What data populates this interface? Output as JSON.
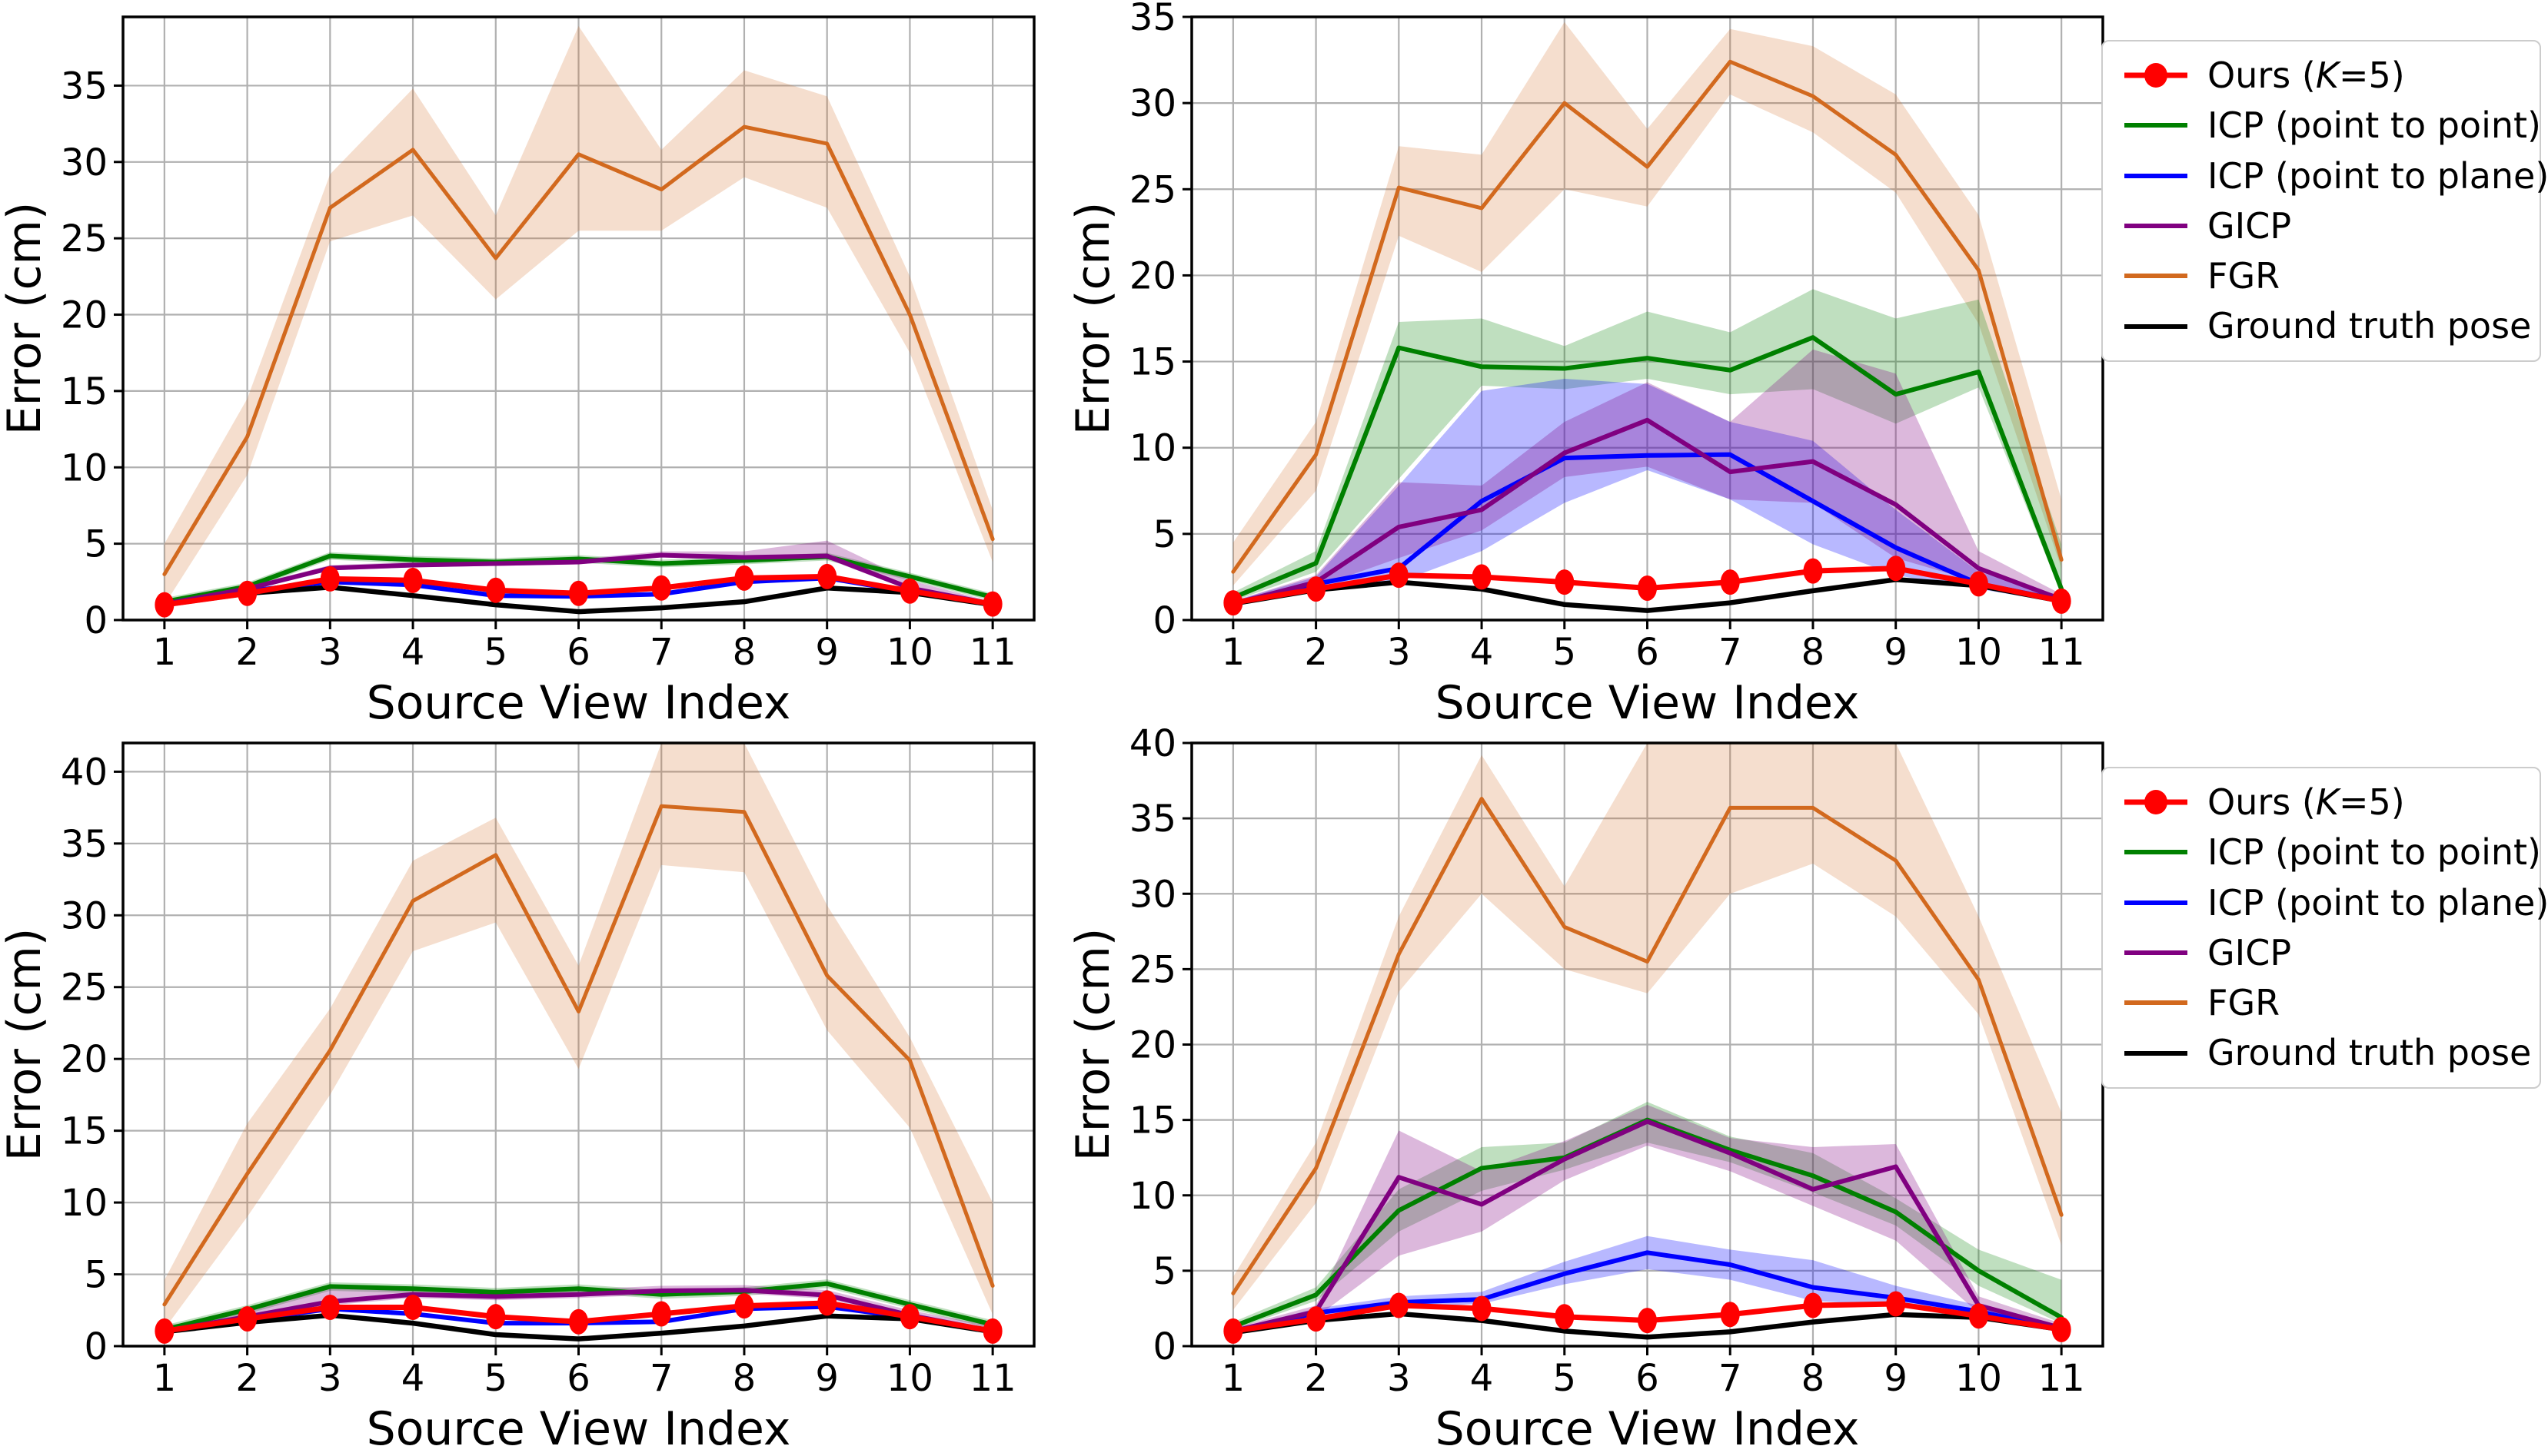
{
  "figure": {
    "background": "#ffffff"
  },
  "axis": {
    "xlabel": "Source View Index",
    "ylabel": "Error (cm)"
  },
  "colors": {
    "ours": "#ff0000",
    "icp_p2p": "#008000",
    "icp_p2l": "#0000ff",
    "gicp": "#800080",
    "fgr": "#d2691e",
    "gt": "#000000",
    "grid": "#b0b0b0",
    "spine": "#000000"
  },
  "legend": {
    "items": [
      {
        "key": "ours",
        "label": "Ours (K=5)",
        "parts": [
          "Ours (",
          "K",
          "=5)"
        ],
        "italic_index": 1,
        "color": "#ff0000",
        "marker": true
      },
      {
        "key": "icp_p2p",
        "label": "ICP (point to point)",
        "parts": [
          "ICP (point to point)"
        ],
        "color": "#008000"
      },
      {
        "key": "icp_p2l",
        "label": "ICP (point to plane)",
        "parts": [
          "ICP (point to plane)"
        ],
        "color": "#0000ff"
      },
      {
        "key": "gicp",
        "label": "GICP",
        "parts": [
          "GICP"
        ],
        "color": "#800080"
      },
      {
        "key": "fgr",
        "label": "FGR",
        "parts": [
          "FGR"
        ],
        "color": "#d2691e"
      },
      {
        "key": "gt",
        "label": "Ground truth pose",
        "parts": [
          "Ground truth pose"
        ],
        "color": "#000000"
      }
    ]
  },
  "chart_data": [
    {
      "id": "top-left",
      "type": "line",
      "xlabel": "Source View Index",
      "ylabel": "Error (cm)",
      "x": [
        1,
        2,
        3,
        4,
        5,
        6,
        7,
        8,
        9,
        10,
        11
      ],
      "xlim": [
        0.5,
        11.5
      ],
      "ylim": [
        0,
        39.5
      ],
      "yticks": [
        0,
        5,
        10,
        15,
        20,
        25,
        30,
        35
      ],
      "grid": true,
      "legend": false,
      "series": [
        {
          "key": "fgr",
          "name": "FGR",
          "color": "#d2691e",
          "width": 5,
          "values": [
            3.0,
            12.0,
            27.0,
            30.8,
            23.7,
            30.5,
            28.2,
            32.3,
            31.2,
            20.0,
            5.3
          ],
          "band_lower": [
            1.0,
            9.5,
            24.8,
            26.5,
            21.0,
            25.5,
            25.5,
            29.0,
            27.0,
            17.5,
            3.8
          ],
          "band_upper": [
            5.0,
            14.5,
            29.2,
            34.8,
            26.5,
            38.9,
            30.8,
            36.0,
            34.3,
            22.5,
            7.2
          ],
          "band_alpha": 0.22
        },
        {
          "key": "icp_p2p",
          "name": "ICP (point to point)",
          "color": "#008000",
          "width": 6,
          "values": [
            1.2,
            2.2,
            4.2,
            3.95,
            3.8,
            4.0,
            3.7,
            3.9,
            4.15,
            2.85,
            1.5
          ],
          "band_lower": [
            0.95,
            1.95,
            3.95,
            3.7,
            3.55,
            3.75,
            3.45,
            3.65,
            3.9,
            2.6,
            1.25
          ],
          "band_upper": [
            1.45,
            2.45,
            4.45,
            4.2,
            4.05,
            4.25,
            3.95,
            4.15,
            4.4,
            3.1,
            1.75
          ],
          "band_alpha": 0.25
        },
        {
          "key": "icp_p2l",
          "name": "ICP (point to plane)",
          "color": "#0000ff",
          "width": 6,
          "values": [
            1.0,
            1.9,
            2.5,
            2.3,
            1.6,
            1.55,
            1.7,
            2.5,
            2.75,
            1.85,
            1.0
          ]
        },
        {
          "key": "gicp",
          "name": "GICP",
          "color": "#800080",
          "width": 6,
          "values": [
            1.05,
            2.05,
            3.4,
            3.6,
            3.7,
            3.8,
            4.25,
            4.1,
            4.2,
            2.1,
            1.05
          ],
          "band_lower": [
            0.9,
            1.9,
            3.25,
            3.45,
            3.55,
            3.65,
            4.1,
            3.95,
            4.0,
            1.95,
            0.9
          ],
          "band_upper": [
            1.2,
            2.2,
            3.6,
            3.8,
            3.9,
            4.0,
            4.5,
            4.5,
            5.2,
            2.6,
            1.2
          ],
          "band_alpha": 0.28
        },
        {
          "key": "gt",
          "name": "Ground truth pose",
          "color": "#000000",
          "width": 6.5,
          "values": [
            1.0,
            1.75,
            2.15,
            1.6,
            1.0,
            0.55,
            0.8,
            1.2,
            2.1,
            1.8,
            1.0
          ]
        },
        {
          "key": "ours",
          "name": "Ours (K=5)",
          "color": "#ff0000",
          "width": 7,
          "marker": true,
          "values": [
            1.0,
            1.75,
            2.7,
            2.6,
            1.95,
            1.75,
            2.1,
            2.75,
            2.85,
            1.9,
            1.05
          ]
        }
      ]
    },
    {
      "id": "top-right",
      "type": "line",
      "xlabel": "Source View Index",
      "ylabel": "Error (cm)",
      "x": [
        1,
        2,
        3,
        4,
        5,
        6,
        7,
        8,
        9,
        10,
        11
      ],
      "xlim": [
        0.5,
        11.5
      ],
      "ylim": [
        0,
        35
      ],
      "yticks": [
        0,
        5,
        10,
        15,
        20,
        25,
        30,
        35
      ],
      "grid": true,
      "legend": true,
      "series": [
        {
          "key": "fgr",
          "name": "FGR",
          "color": "#d2691e",
          "width": 5,
          "values": [
            2.8,
            9.6,
            25.1,
            23.9,
            30.0,
            26.3,
            32.4,
            30.4,
            27.0,
            20.3,
            3.5
          ],
          "band_lower": [
            2.0,
            7.5,
            22.3,
            20.2,
            25.0,
            24.0,
            30.5,
            28.3,
            24.8,
            17.2,
            3.0
          ],
          "band_upper": [
            4.5,
            11.5,
            27.5,
            27.0,
            34.7,
            28.5,
            34.3,
            33.3,
            30.5,
            23.5,
            7.0
          ],
          "band_alpha": 0.22
        },
        {
          "key": "icp_p2p",
          "name": "ICP (point to point)",
          "color": "#008000",
          "width": 6,
          "values": [
            1.3,
            3.3,
            15.8,
            14.7,
            14.6,
            15.2,
            14.5,
            16.4,
            13.1,
            14.4,
            1.8
          ],
          "band_lower": [
            1.1,
            2.8,
            8.2,
            13.6,
            13.4,
            14.0,
            13.1,
            13.4,
            11.4,
            13.5,
            1.5
          ],
          "band_upper": [
            1.6,
            4.0,
            17.3,
            17.5,
            15.9,
            17.9,
            16.7,
            19.2,
            17.5,
            18.6,
            4.4
          ],
          "band_alpha": 0.25
        },
        {
          "key": "icp_p2l",
          "name": "ICP (point to plane)",
          "color": "#0000ff",
          "width": 6,
          "values": [
            0.95,
            2.1,
            3.0,
            6.9,
            9.4,
            9.55,
            9.6,
            6.9,
            4.2,
            2.1,
            1.15
          ],
          "band_lower": [
            0.85,
            1.8,
            2.2,
            4.0,
            6.8,
            8.7,
            7.0,
            4.4,
            2.6,
            1.8,
            1.0
          ],
          "band_upper": [
            1.1,
            2.5,
            7.8,
            13.3,
            14.0,
            13.7,
            11.5,
            10.4,
            6.4,
            2.8,
            1.4
          ],
          "band_alpha": 0.28
        },
        {
          "key": "gicp",
          "name": "GICP",
          "color": "#800080",
          "width": 6,
          "values": [
            0.95,
            2.2,
            5.4,
            6.4,
            9.7,
            11.6,
            8.6,
            9.2,
            6.7,
            3.0,
            1.2
          ],
          "band_lower": [
            0.85,
            1.9,
            3.6,
            5.2,
            8.3,
            8.9,
            7.0,
            6.8,
            3.6,
            2.2,
            1.0
          ],
          "band_upper": [
            1.1,
            2.6,
            8.0,
            7.8,
            11.5,
            13.8,
            11.5,
            15.7,
            14.3,
            4.0,
            1.5
          ],
          "band_alpha": 0.28
        },
        {
          "key": "gt",
          "name": "Ground truth pose",
          "color": "#000000",
          "width": 6.5,
          "values": [
            0.95,
            1.75,
            2.2,
            1.8,
            0.9,
            0.55,
            1.0,
            1.7,
            2.35,
            2.0,
            1.1
          ]
        },
        {
          "key": "ours",
          "name": "Ours (K=5)",
          "color": "#ff0000",
          "width": 7,
          "marker": true,
          "values": [
            1.0,
            1.8,
            2.6,
            2.5,
            2.2,
            1.85,
            2.2,
            2.85,
            3.0,
            2.1,
            1.1
          ]
        }
      ]
    },
    {
      "id": "bottom-left",
      "type": "line",
      "xlabel": "Source View Index",
      "ylabel": "Error (cm)",
      "x": [
        1,
        2,
        3,
        4,
        5,
        6,
        7,
        8,
        9,
        10,
        11
      ],
      "xlim": [
        0.5,
        11.5
      ],
      "ylim": [
        0,
        42
      ],
      "yticks": [
        0,
        5,
        10,
        15,
        20,
        25,
        30,
        35,
        40
      ],
      "grid": true,
      "legend": false,
      "series": [
        {
          "key": "fgr",
          "name": "FGR",
          "color": "#d2691e",
          "width": 5,
          "values": [
            2.9,
            12.0,
            20.6,
            31.0,
            34.2,
            23.3,
            37.6,
            37.2,
            25.8,
            19.9,
            4.2
          ],
          "band_lower": [
            1.2,
            9.0,
            17.5,
            27.5,
            29.5,
            19.3,
            33.5,
            33.0,
            22.0,
            15.2,
            2.2
          ],
          "band_upper": [
            4.6,
            15.5,
            23.5,
            33.8,
            36.8,
            26.5,
            42.0,
            42.0,
            30.7,
            21.5,
            10.0
          ],
          "band_alpha": 0.22
        },
        {
          "key": "icp_p2p",
          "name": "ICP (point to point)",
          "color": "#008000",
          "width": 6,
          "values": [
            1.15,
            2.55,
            4.15,
            4.0,
            3.75,
            4.0,
            3.6,
            3.8,
            4.35,
            2.9,
            1.5
          ],
          "band_lower": [
            0.85,
            2.25,
            3.85,
            3.7,
            3.45,
            3.7,
            3.3,
            3.5,
            4.05,
            2.6,
            1.2
          ],
          "band_upper": [
            1.45,
            2.85,
            4.45,
            4.3,
            4.05,
            4.3,
            3.9,
            4.1,
            4.65,
            3.2,
            1.8
          ],
          "band_alpha": 0.25
        },
        {
          "key": "icp_p2l",
          "name": "ICP (point to plane)",
          "color": "#0000ff",
          "width": 6,
          "values": [
            1.0,
            1.8,
            2.6,
            2.25,
            1.6,
            1.6,
            1.7,
            2.6,
            2.75,
            2.0,
            1.0
          ]
        },
        {
          "key": "gicp",
          "name": "GICP",
          "color": "#800080",
          "width": 6,
          "values": [
            1.05,
            2.05,
            3.1,
            3.6,
            3.45,
            3.6,
            3.85,
            3.9,
            3.55,
            2.15,
            1.05
          ],
          "band_lower": [
            0.8,
            1.8,
            2.85,
            3.35,
            3.2,
            3.35,
            3.6,
            3.65,
            3.3,
            1.9,
            0.8
          ],
          "band_upper": [
            1.4,
            2.4,
            4.1,
            3.95,
            3.8,
            3.95,
            4.2,
            4.25,
            3.9,
            2.5,
            1.4
          ],
          "band_alpha": 0.28
        },
        {
          "key": "gt",
          "name": "Ground truth pose",
          "color": "#000000",
          "width": 6.5,
          "values": [
            1.0,
            1.65,
            2.15,
            1.6,
            0.8,
            0.5,
            0.9,
            1.4,
            2.1,
            1.9,
            1.0
          ]
        },
        {
          "key": "ours",
          "name": "Ours (K=5)",
          "color": "#ff0000",
          "width": 7,
          "marker": true,
          "values": [
            1.05,
            1.9,
            2.7,
            2.7,
            2.05,
            1.7,
            2.25,
            2.8,
            3.0,
            2.05,
            1.05
          ]
        }
      ]
    },
    {
      "id": "bottom-right",
      "type": "line",
      "xlabel": "Source View Index",
      "ylabel": "Error (cm)",
      "x": [
        1,
        2,
        3,
        4,
        5,
        6,
        7,
        8,
        9,
        10,
        11
      ],
      "xlim": [
        0.5,
        11.5
      ],
      "ylim": [
        0,
        40
      ],
      "yticks": [
        0,
        5,
        10,
        15,
        20,
        25,
        30,
        35,
        40
      ],
      "grid": true,
      "legend": true,
      "series": [
        {
          "key": "fgr",
          "name": "FGR",
          "color": "#d2691e",
          "width": 5,
          "values": [
            3.5,
            11.8,
            26.0,
            36.3,
            27.8,
            25.5,
            35.7,
            35.7,
            32.2,
            24.3,
            8.7
          ],
          "band_lower": [
            2.4,
            9.5,
            23.5,
            30.0,
            25.0,
            23.4,
            30.0,
            32.0,
            28.5,
            22.0,
            6.7
          ],
          "band_upper": [
            4.6,
            13.5,
            28.5,
            39.2,
            30.5,
            40.0,
            40.0,
            40.0,
            40.0,
            28.5,
            15.5
          ],
          "band_alpha": 0.22
        },
        {
          "key": "icp_p2p",
          "name": "ICP (point to point)",
          "color": "#008000",
          "width": 6,
          "values": [
            1.3,
            3.4,
            9.0,
            11.8,
            12.5,
            15.0,
            13.0,
            11.3,
            8.9,
            5.0,
            1.9
          ],
          "band_lower": [
            1.1,
            3.0,
            7.6,
            10.3,
            11.7,
            13.5,
            12.2,
            10.2,
            8.0,
            4.0,
            1.5
          ],
          "band_upper": [
            1.6,
            3.9,
            10.4,
            13.2,
            13.5,
            16.2,
            13.9,
            12.8,
            9.8,
            6.4,
            4.4
          ],
          "band_alpha": 0.25
        },
        {
          "key": "icp_p2l",
          "name": "ICP (point to plane)",
          "color": "#0000ff",
          "width": 6,
          "values": [
            0.95,
            2.2,
            2.9,
            3.1,
            4.8,
            6.2,
            5.4,
            3.9,
            3.2,
            2.3,
            1.1
          ],
          "band_lower": [
            0.85,
            2.0,
            2.6,
            2.8,
            4.1,
            5.1,
            4.4,
            3.0,
            2.7,
            2.0,
            1.0
          ],
          "band_upper": [
            1.1,
            2.5,
            3.3,
            3.6,
            5.6,
            7.3,
            6.4,
            5.7,
            4.0,
            2.7,
            1.3
          ],
          "band_alpha": 0.28
        },
        {
          "key": "gicp",
          "name": "GICP",
          "color": "#800080",
          "width": 6,
          "values": [
            1.0,
            2.3,
            11.2,
            9.4,
            12.4,
            14.9,
            12.8,
            10.4,
            11.9,
            2.7,
            1.2
          ],
          "band_lower": [
            0.9,
            1.9,
            6.0,
            7.6,
            11.0,
            13.3,
            11.6,
            9.3,
            7.0,
            2.2,
            1.0
          ],
          "band_upper": [
            1.2,
            2.7,
            14.3,
            11.6,
            13.6,
            16.0,
            13.8,
            13.2,
            13.4,
            3.3,
            1.5
          ],
          "band_alpha": 0.28
        },
        {
          "key": "gt",
          "name": "Ground truth pose",
          "color": "#000000",
          "width": 6.5,
          "values": [
            0.9,
            1.7,
            2.15,
            1.7,
            1.0,
            0.6,
            0.95,
            1.6,
            2.1,
            1.9,
            1.1
          ]
        },
        {
          "key": "ours",
          "name": "Ours (K=5)",
          "color": "#ff0000",
          "width": 7,
          "marker": true,
          "values": [
            1.0,
            1.8,
            2.7,
            2.5,
            1.95,
            1.7,
            2.1,
            2.7,
            2.8,
            2.0,
            1.1
          ]
        }
      ]
    }
  ]
}
